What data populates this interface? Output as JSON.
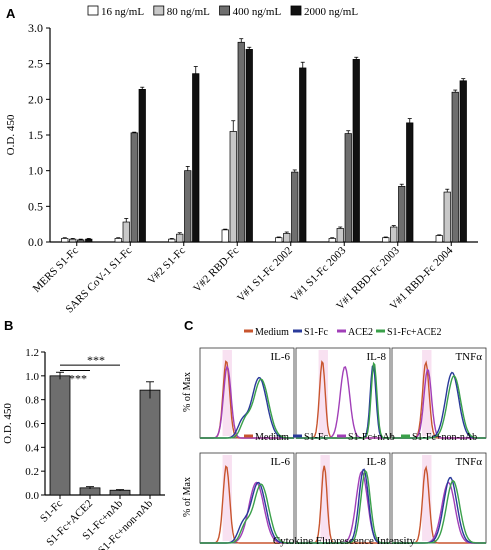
{
  "panels": {
    "a": "A",
    "b": "B",
    "c": "C"
  },
  "chart_data": [
    {
      "type": "bar",
      "panel": "A",
      "ylabel": "O.D. 450",
      "ylim": [
        0,
        3.0
      ],
      "yticks": [
        "0.0",
        "0.5",
        "1.0",
        "1.5",
        "2.0",
        "2.5",
        "3.0"
      ],
      "categories": [
        "MERS S1-Fc",
        "SARS CoV-1 S1-Fc",
        "V#2 S1-Fc",
        "V#2 RBD-Fc",
        "V#1 S1-Fc 2002",
        "V#1 S1-Fc 2003",
        "V#1 RBD-Fc 2003",
        "V#1 RBD-Fc 2004"
      ],
      "legend_position": "top",
      "series": [
        {
          "name": "16 ng/mL",
          "color": "#ffffff",
          "values": [
            0.05,
            0.05,
            0.04,
            0.17,
            0.06,
            0.05,
            0.06,
            0.09
          ],
          "errors": [
            0.01,
            0.01,
            0.01,
            0.01,
            0.01,
            0.01,
            0.01,
            0.01
          ]
        },
        {
          "name": "80 ng/mL",
          "color": "#c8c8c8",
          "values": [
            0.04,
            0.28,
            0.11,
            1.55,
            0.12,
            0.19,
            0.21,
            0.7
          ],
          "errors": [
            0.01,
            0.05,
            0.02,
            0.15,
            0.02,
            0.02,
            0.02,
            0.04
          ]
        },
        {
          "name": "400 ng/mL",
          "color": "#6e6e6e",
          "values": [
            0.03,
            1.53,
            1.0,
            2.8,
            0.98,
            1.52,
            0.78,
            2.1
          ],
          "errors": [
            0.01,
            0.01,
            0.06,
            0.05,
            0.03,
            0.04,
            0.03,
            0.03
          ]
        },
        {
          "name": "2000 ng/mL",
          "color": "#111111",
          "values": [
            0.04,
            2.14,
            2.36,
            2.7,
            2.44,
            2.56,
            1.67,
            2.26
          ],
          "errors": [
            0.01,
            0.03,
            0.1,
            0.03,
            0.08,
            0.03,
            0.06,
            0.03
          ]
        }
      ]
    },
    {
      "type": "bar",
      "panel": "B",
      "ylabel": "O.D. 450",
      "ylim": [
        0,
        1.2
      ],
      "yticks": [
        "0.0",
        "0.2",
        "0.4",
        "0.6",
        "0.8",
        "1.0",
        "1.2"
      ],
      "categories": [
        "S1-Fc",
        "S1-Fc+ACE2",
        "S1-Fc+nAb",
        "S1-Fc+non-nAb"
      ],
      "values": [
        1.0,
        0.06,
        0.04,
        0.88
      ],
      "errors": [
        0.03,
        0.01,
        0.005,
        0.07
      ],
      "color": "#6e6e6e",
      "significance": [
        {
          "label": "***",
          "from": "S1-Fc",
          "to": "S1-Fc+ACE2"
        },
        {
          "label": "***",
          "from": "S1-Fc",
          "to": "S1-Fc+nAb"
        }
      ]
    },
    {
      "type": "histogram",
      "panel": "C",
      "ylabel": "% of Max",
      "xlabel": "Cytokine Fluorescence Intensity",
      "rows": [
        {
          "legend": [
            {
              "name": "Medium",
              "color": "#c8552e"
            },
            {
              "name": "S1-Fc",
              "color": "#2a3a9a"
            },
            {
              "name": "ACE2",
              "color": "#a13fb8"
            },
            {
              "name": "S1-Fc+ACE2",
              "color": "#3aa04a"
            }
          ],
          "panels": [
            "IL-6",
            "IL-8",
            "TNFα"
          ]
        },
        {
          "legend": [
            {
              "name": "Medium",
              "color": "#c8552e"
            },
            {
              "name": "S1-Fc",
              "color": "#2a3a9a"
            },
            {
              "name": "S1-Fc+nAb",
              "color": "#a13fb8"
            },
            {
              "name": "S1-Fc+non-nAb",
              "color": "#3aa04a"
            }
          ],
          "panels": [
            "IL-6",
            "IL-8",
            "TNFα"
          ]
        }
      ]
    }
  ]
}
